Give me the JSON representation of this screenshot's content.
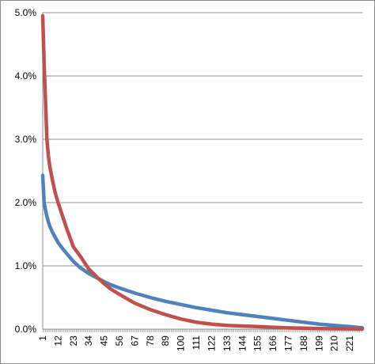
{
  "chart_data": {
    "type": "line",
    "title": "",
    "xlabel": "",
    "ylabel": "",
    "ylim": [
      0,
      0.05
    ],
    "xlim": [
      1,
      230
    ],
    "grid": "horizontal",
    "legend": "none",
    "y_ticks": [
      {
        "value": 0.0,
        "label": "0.0%"
      },
      {
        "value": 0.01,
        "label": "1.0%"
      },
      {
        "value": 0.02,
        "label": "2.0%"
      },
      {
        "value": 0.03,
        "label": "3.0%"
      },
      {
        "value": 0.04,
        "label": "4.0%"
      },
      {
        "value": 0.05,
        "label": "5.0%"
      }
    ],
    "x_ticks": [
      1,
      12,
      23,
      34,
      45,
      56,
      67,
      78,
      89,
      100,
      111,
      122,
      133,
      144,
      155,
      166,
      177,
      188,
      199,
      210,
      221
    ],
    "series": [
      {
        "color": "#4f81bd",
        "x": [
          1,
          2,
          3,
          4,
          5,
          6,
          8,
          10,
          12,
          15,
          18,
          23,
          28,
          34,
          40,
          45,
          50,
          56,
          67,
          78,
          89,
          100,
          111,
          122,
          133,
          144,
          155,
          166,
          177,
          188,
          199,
          210,
          221,
          230
        ],
        "y": [
          0.0243,
          0.02,
          0.0188,
          0.0178,
          0.017,
          0.0163,
          0.0153,
          0.0145,
          0.0137,
          0.0128,
          0.012,
          0.0107,
          0.0097,
          0.0088,
          0.0081,
          0.0075,
          0.007,
          0.0065,
          0.0057,
          0.005,
          0.0044,
          0.0039,
          0.0034,
          0.003,
          0.0026,
          0.0023,
          0.002,
          0.0017,
          0.0014,
          0.0011,
          0.0008,
          0.0006,
          0.0004,
          0.0002
        ]
      },
      {
        "color": "#c0504d",
        "x": [
          1,
          2,
          3,
          4,
          5,
          6,
          8,
          10,
          12,
          15,
          18,
          23,
          28,
          34,
          40,
          45,
          50,
          56,
          67,
          78,
          89,
          100,
          111,
          122,
          133,
          144,
          155,
          166,
          177,
          188,
          199,
          210,
          221,
          230
        ],
        "y": [
          0.0495,
          0.042,
          0.036,
          0.03,
          0.0275,
          0.0258,
          0.0235,
          0.0215,
          0.02,
          0.018,
          0.016,
          0.013,
          0.0115,
          0.0095,
          0.0082,
          0.0072,
          0.0063,
          0.0055,
          0.0041,
          0.0031,
          0.0023,
          0.0016,
          0.0011,
          0.0008,
          0.0006,
          0.0005,
          0.0004,
          0.0003,
          0.0002,
          0.00015,
          0.0001,
          8e-05,
          5e-05,
          3e-05
        ]
      }
    ]
  }
}
